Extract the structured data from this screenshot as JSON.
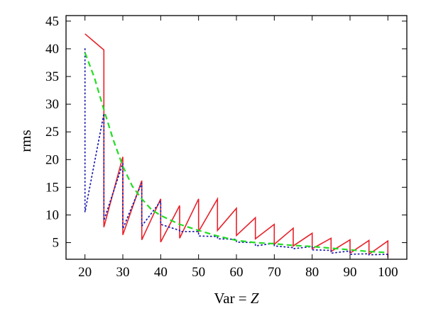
{
  "chart_data": {
    "type": "line",
    "title": "",
    "xlabel_prefix": "Var = ",
    "xlabel_var": "Z",
    "ylabel": "rms",
    "xlim": [
      15,
      105
    ],
    "ylim": [
      2,
      46
    ],
    "xticks": [
      20,
      30,
      40,
      50,
      60,
      70,
      80,
      90,
      100
    ],
    "yticks": [
      5,
      10,
      15,
      20,
      25,
      30,
      35,
      40,
      45
    ],
    "grid": false,
    "legend": "none",
    "series": [
      {
        "style": "solid",
        "color": "#e8212a",
        "x": [
          20,
          25,
          25,
          30,
          30,
          35,
          35,
          40,
          40,
          45,
          45,
          50,
          50,
          55,
          55,
          60,
          60,
          65,
          65,
          70,
          70,
          75,
          75,
          80,
          80,
          85,
          85,
          90,
          90,
          95,
          95,
          100,
          100
        ],
        "y": [
          42.7,
          39.8,
          7.8,
          20.5,
          6.4,
          16.2,
          5.5,
          12.9,
          5.1,
          11.7,
          5.8,
          12.9,
          7.0,
          12.9,
          7.2,
          11.2,
          6.3,
          9.5,
          5.7,
          8.3,
          4.7,
          7.6,
          4.4,
          6.7,
          3.9,
          5.8,
          3.4,
          5.5,
          3.1,
          5.4,
          2.9,
          5.3,
          2.3
        ]
      },
      {
        "style": "dotted",
        "color": "#2020b0",
        "x": [
          20,
          20,
          25,
          25,
          30,
          30,
          35,
          35,
          40,
          40,
          45,
          45,
          50,
          50,
          55,
          55,
          60,
          60,
          65,
          65,
          70,
          70,
          75,
          75,
          80,
          80,
          85,
          85,
          90,
          90,
          95,
          95,
          100
        ],
        "y": [
          40.0,
          10.5,
          28.3,
          9.0,
          19.3,
          7.5,
          15.8,
          8.0,
          12.5,
          8.3,
          7.2,
          7.0,
          7.0,
          6.2,
          6.1,
          5.7,
          5.6,
          5.1,
          5.0,
          4.4,
          4.9,
          4.4,
          4.1,
          3.9,
          4.3,
          3.7,
          3.6,
          3.1,
          3.5,
          2.9,
          3.0,
          2.8,
          2.9
        ]
      },
      {
        "style": "dashed",
        "color": "#22dd22",
        "x": [
          20,
          22.5,
          25,
          27.5,
          30,
          32.5,
          35,
          37.5,
          40,
          45,
          50,
          55,
          60,
          65,
          70,
          75,
          80,
          85,
          90,
          95,
          100
        ],
        "y": [
          39.3,
          34.8,
          29.0,
          23.5,
          18.8,
          15.2,
          12.9,
          11.0,
          9.9,
          8.3,
          7.2,
          6.2,
          5.4,
          5.0,
          4.8,
          4.5,
          4.3,
          4.0,
          3.7,
          3.4,
          3.2
        ]
      }
    ]
  }
}
